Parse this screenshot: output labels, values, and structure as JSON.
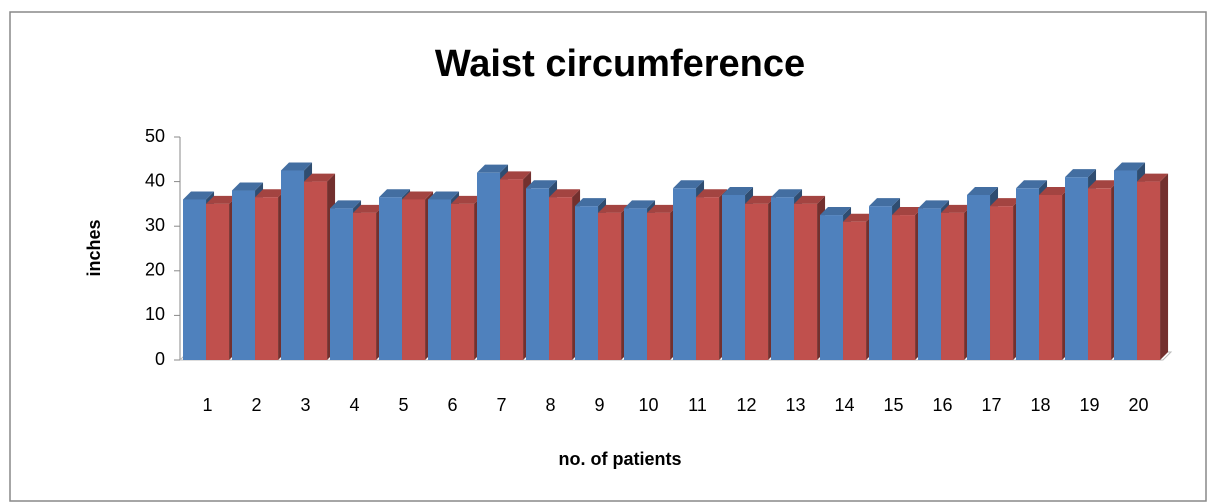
{
  "chart_data": {
    "type": "bar3d",
    "title": "Waist circumference",
    "xlabel": "no. of patients",
    "ylabel": "inches",
    "categories": [
      "1",
      "2",
      "3",
      "4",
      "5",
      "6",
      "7",
      "8",
      "9",
      "10",
      "11",
      "12",
      "13",
      "14",
      "15",
      "16",
      "17",
      "18",
      "19",
      "20"
    ],
    "series": [
      {
        "color": "#4f81bd",
        "values": [
          36,
          38,
          42.5,
          34,
          36.5,
          36,
          42,
          38.5,
          34.5,
          34,
          38.5,
          37,
          36.5,
          32.5,
          34.5,
          34,
          37,
          38.5,
          41,
          42.5
        ]
      },
      {
        "color": "#c0504d",
        "values": [
          35,
          36.5,
          40,
          33,
          36,
          35,
          40.5,
          36.5,
          33,
          33,
          36.5,
          35,
          35,
          31,
          32.5,
          33,
          34.5,
          37,
          38.5,
          40
        ]
      }
    ],
    "ylim": [
      0,
      50
    ],
    "yticks": [
      0,
      10,
      20,
      30,
      40,
      50
    ]
  }
}
